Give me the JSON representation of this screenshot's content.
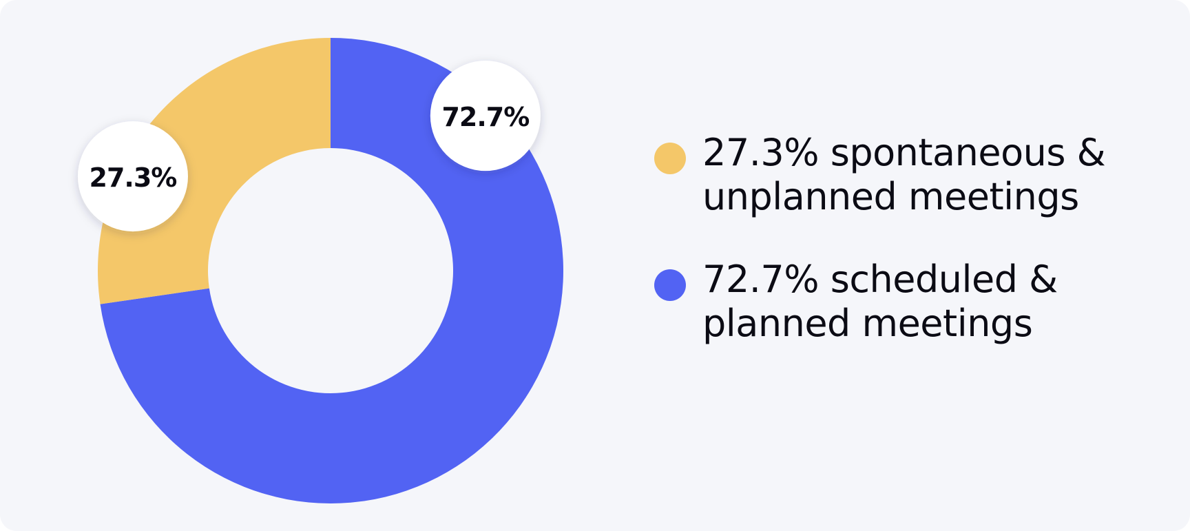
{
  "chart_data": {
    "type": "pie",
    "style": "donut",
    "categories": [
      "spontaneous & unplanned meetings",
      "scheduled & planned meetings"
    ],
    "values": [
      27.3,
      72.7
    ],
    "slice_labels": [
      "27.3%",
      "72.7%"
    ],
    "colors": [
      "#f4c769",
      "#5263f3"
    ],
    "legend_position": "right",
    "legend": [
      {
        "line1": "27.3% spontaneous &",
        "line2": "unplanned meetings",
        "color": "#f4c769"
      },
      {
        "line1": "72.7% scheduled &",
        "line2": "planned meetings",
        "color": "#5263f3"
      }
    ],
    "title": ""
  }
}
